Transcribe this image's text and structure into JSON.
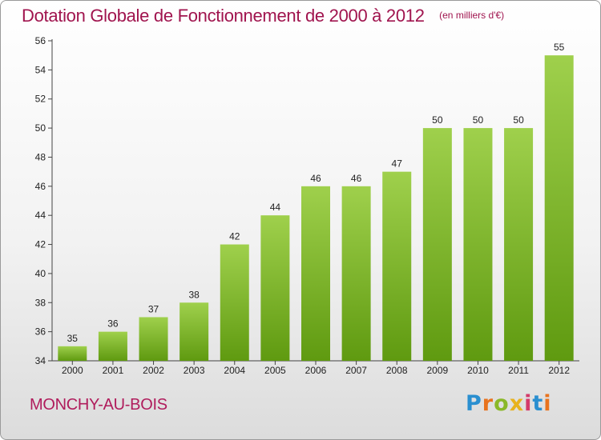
{
  "header": {
    "title": "Dotation Globale de Fonctionnement de 2000 à 2012",
    "subtitle": "(en milliers d'€)"
  },
  "footer": {
    "commune": "MONCHY-AU-BOIS",
    "logo_text": "Proxiti",
    "logo_colors": [
      "#2a8fd0",
      "#e8731e",
      "#8ab828",
      "#e8b21e",
      "#d43a6a",
      "#2a8fd0",
      "#e8731e"
    ]
  },
  "colors": {
    "title": "#a0144e",
    "bar_top": "#9fd04c",
    "bar_bottom": "#5f9a10"
  },
  "chart_data": {
    "type": "bar",
    "title": "Dotation Globale de Fonctionnement de 2000 à 2012",
    "subtitle": "(en milliers d'€)",
    "categories": [
      "2000",
      "2001",
      "2002",
      "2003",
      "2004",
      "2005",
      "2006",
      "2007",
      "2008",
      "2009",
      "2010",
      "2011",
      "2012"
    ],
    "values": [
      35,
      36,
      37,
      38,
      42,
      44,
      46,
      46,
      47,
      50,
      50,
      50,
      55
    ],
    "ylim": [
      34,
      56
    ],
    "yticks": [
      34,
      36,
      38,
      40,
      42,
      44,
      46,
      48,
      50,
      52,
      54,
      56
    ],
    "grid": false,
    "legend": "none"
  }
}
